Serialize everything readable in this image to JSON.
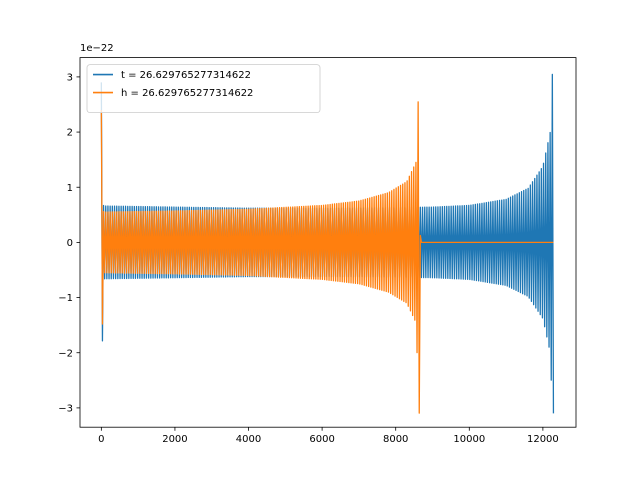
{
  "chart_data": {
    "type": "line",
    "title": "",
    "xlabel": "",
    "ylabel": "",
    "y_offset_label": "1e−22",
    "xlim": [
      -580,
      12900
    ],
    "ylim": [
      -3.35,
      3.35
    ],
    "x_ticks": [
      0,
      2000,
      4000,
      6000,
      8000,
      10000,
      12000
    ],
    "y_ticks": [
      -3,
      -2,
      -1,
      0,
      1,
      2,
      3
    ],
    "x_tick_labels": [
      "0",
      "2000",
      "4000",
      "6000",
      "8000",
      "10000",
      "12000"
    ],
    "y_tick_labels": [
      "−3",
      "−2",
      "−1",
      "0",
      "1",
      "2",
      "3"
    ],
    "grid": false,
    "legend_position": "upper-left",
    "series": [
      {
        "name": "t = 26.629765277314622",
        "color": "#1f77b4",
        "envelope": [
          [
            0,
            2.9
          ],
          [
            60,
            0.66
          ],
          [
            2000,
            0.64
          ],
          [
            4000,
            0.62
          ],
          [
            6000,
            0.62
          ],
          [
            8000,
            0.63
          ],
          [
            9000,
            0.64
          ],
          [
            10000,
            0.67
          ],
          [
            11000,
            0.78
          ],
          [
            11600,
            0.98
          ],
          [
            12000,
            1.38
          ],
          [
            12200,
            2.0
          ],
          [
            12260,
            3.1
          ],
          [
            12290,
            3.1
          ]
        ]
      },
      {
        "name": "h = 26.629765277314622",
        "color": "#ff7f0e",
        "envelope": [
          [
            0,
            2.4
          ],
          [
            60,
            0.55
          ],
          [
            2000,
            0.57
          ],
          [
            4000,
            0.6
          ],
          [
            6000,
            0.67
          ],
          [
            7000,
            0.75
          ],
          [
            7800,
            0.9
          ],
          [
            8300,
            1.1
          ],
          [
            8550,
            1.45
          ],
          [
            8640,
            3.1
          ],
          [
            8660,
            3.1
          ],
          [
            8670,
            0
          ],
          [
            12290,
            0
          ]
        ]
      }
    ]
  }
}
